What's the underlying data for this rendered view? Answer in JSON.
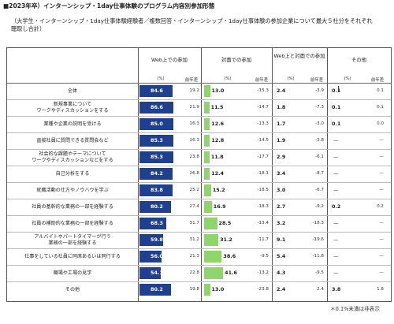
{
  "title": "■2023年卒）インターンシップ・1day仕事体験のプログラム内容別参加形態",
  "subtitle": "（大学生・インターンシップ・1day仕事体験経験者／複数回答・インターンシップ・1day仕事体験の参加企業について最大５社分をそれぞれ聴取し合計）",
  "note": "＊0.1%未満は非表示",
  "colors": {
    "web": "#1f3f8f",
    "face": "#8ed66a",
    "hybrid": "#f3f3f3",
    "other": "#f3f3f3"
  },
  "chart_data": {
    "type": "table",
    "columns": [
      {
        "label": "Web上での参加",
        "pct_label": "(%)",
        "diff_label": "前年差"
      },
      {
        "label": "対面での参加",
        "pct_label": "(%)",
        "diff_label": "前年差"
      },
      {
        "label": "Web上と対面での参加",
        "pct_label": "(%)",
        "diff_label": "前年差"
      },
      {
        "label": "その他",
        "pct_label": "(%)",
        "diff_label": "前年差"
      }
    ],
    "rows": [
      {
        "label": "全体",
        "web": "84.6",
        "web_diff": "19.2",
        "face": "13.0",
        "face_diff": "-15.3",
        "hybrid": "2.4",
        "hybrid_diff": "-3.9",
        "other": "0.1",
        "other_diff": "0.1"
      },
      {
        "label": "新規事業について\nワークやディスカッションをする",
        "web": "86.6",
        "web_diff": "21.9",
        "face": "11.5",
        "face_diff": "-14.7",
        "hybrid": "1.8",
        "hybrid_diff": "-7.3",
        "other": "0.1",
        "other_diff": "0.1"
      },
      {
        "label": "業種や企業の説明を受ける",
        "web": "85.0",
        "web_diff": "16.3",
        "face": "12.6",
        "face_diff": "-13.3",
        "hybrid": "1.7",
        "hybrid_diff": "-3.0",
        "other": "0.1",
        "other_diff": "0.0"
      },
      {
        "label": "直接社員に質問できる質問会など",
        "web": "85.3",
        "web_diff": "16.3",
        "face": "12.8",
        "face_diff": "-14.5",
        "hybrid": "1.9",
        "hybrid_diff": "-3.8",
        "other": "—",
        "other_diff": "—"
      },
      {
        "label": "社会的な課題やテーマについて\nワークやディスカッションなどをする",
        "web": "85.3",
        "web_diff": "23.8",
        "face": "11.8",
        "face_diff": "-17.7",
        "hybrid": "2.9",
        "hybrid_diff": "-6.1",
        "other": "—",
        "other_diff": "—"
      },
      {
        "label": "自己分析をする",
        "web": "84.2",
        "web_diff": "26.8",
        "face": "12.4",
        "face_diff": "-18.1",
        "hybrid": "3.4",
        "hybrid_diff": "-8.7",
        "other": "—",
        "other_diff": "—"
      },
      {
        "label": "就職活動の仕方やノウハウを学ぶ",
        "web": "83.8",
        "web_diff": "25.2",
        "face": "15.2",
        "face_diff": "-18.5",
        "hybrid": "3.0",
        "hybrid_diff": "-6.7",
        "other": "—",
        "other_diff": "—"
      },
      {
        "label": "社員の基幹的な業務の一部を経験する",
        "web": "80.2",
        "web_diff": "27.4",
        "face": "16.9",
        "face_diff": "-18.3",
        "hybrid": "2.7",
        "hybrid_diff": "-9.2",
        "other": "0.2",
        "other_diff": "0.2"
      },
      {
        "label": "社員の補助的な業務の一部を経験する",
        "web": "68.3",
        "web_diff": "31.7",
        "face": "28.5",
        "face_diff": "-13.4",
        "hybrid": "3.2",
        "hybrid_diff": "-18.3",
        "other": "—",
        "other_diff": "—"
      },
      {
        "label": "アルバイトやパートタイマーが行う\n業務の一部を経験する",
        "web": "59.8",
        "web_diff": "31.2",
        "face": "31.2",
        "face_diff": "-11.7",
        "hybrid": "9.1",
        "hybrid_diff": "-19.6",
        "other": "—",
        "other_diff": "—"
      },
      {
        "label": "仕事をしている社員に同席あるいは同行する",
        "web": "56.0",
        "web_diff": "21.3",
        "face": "38.6",
        "face_diff": "-9.5",
        "hybrid": "5.4",
        "hybrid_diff": "-11.8",
        "other": "—",
        "other_diff": "—"
      },
      {
        "label": "職場や工場の見学",
        "web": "54.1",
        "web_diff": "22.8",
        "face": "41.6",
        "face_diff": "-13.2",
        "hybrid": "4.3",
        "hybrid_diff": "-9.5",
        "other": "—",
        "other_diff": "—"
      },
      {
        "label": "その他",
        "web": "80.2",
        "web_diff": "19.8",
        "face": "13.0",
        "face_diff": "-23.8",
        "hybrid": "2.4",
        "hybrid_diff": "2.4",
        "other": "3.8",
        "other_diff": "1.8"
      }
    ]
  }
}
